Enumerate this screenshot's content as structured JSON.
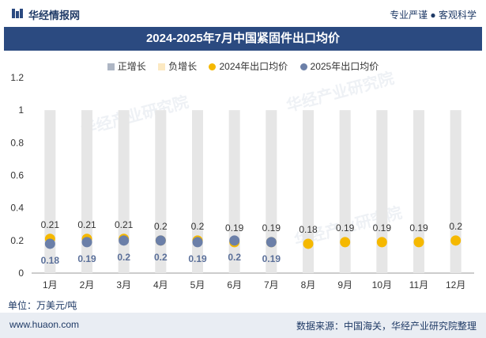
{
  "header": {
    "brand": "华经情报网",
    "tagline": "专业严谨 ● 客观科学"
  },
  "watermark_text": "华经产业研究院",
  "footer": {
    "unit": "单位：万美元/吨",
    "site": "www.huaon.com",
    "source": "数据来源：中国海关，华经产业研究院整理"
  },
  "colors": {
    "brand": "#2b4a80",
    "positive": "#aeb6c4",
    "negative": "#fce9c2",
    "series2024": "#f5b800",
    "series2025": "#6b7fa8",
    "bar": "#e6e6e6"
  },
  "chart_data": {
    "type": "scatter",
    "title": "2024-2025年7月中国紧固件出口均价",
    "legend": [
      "正增长",
      "负增长",
      "2024年出口均价",
      "2025年出口均价"
    ],
    "categories": [
      "1月",
      "2月",
      "3月",
      "4月",
      "5月",
      "6月",
      "7月",
      "8月",
      "9月",
      "10月",
      "11月",
      "12月"
    ],
    "ylim": [
      0,
      1.2
    ],
    "yticks": [
      "0",
      "0.2",
      "0.4",
      "0.6",
      "0.8",
      "1",
      "1.2"
    ],
    "series": [
      {
        "name": "2024年出口均价",
        "values": [
          0.21,
          0.21,
          0.21,
          0.2,
          0.2,
          0.19,
          0.19,
          0.18,
          0.19,
          0.19,
          0.19,
          0.2
        ],
        "labels": [
          "0.21",
          "0.21",
          "0.21",
          "0.2",
          "0.2",
          "0.19",
          "0.19",
          "0.18",
          "0.19",
          "0.19",
          "0.19",
          "0.2"
        ]
      },
      {
        "name": "2025年出口均价",
        "values": [
          0.18,
          0.19,
          0.2,
          0.2,
          0.19,
          0.2,
          0.19
        ],
        "labels": [
          "0.18",
          "0.19",
          "0.2",
          "0.2",
          "0.19",
          "0.2",
          "0.19"
        ]
      }
    ],
    "bars": {
      "name": "负增长",
      "values": [
        1,
        1,
        1,
        1,
        1,
        1,
        1,
        1,
        1,
        1,
        1,
        1
      ]
    }
  }
}
